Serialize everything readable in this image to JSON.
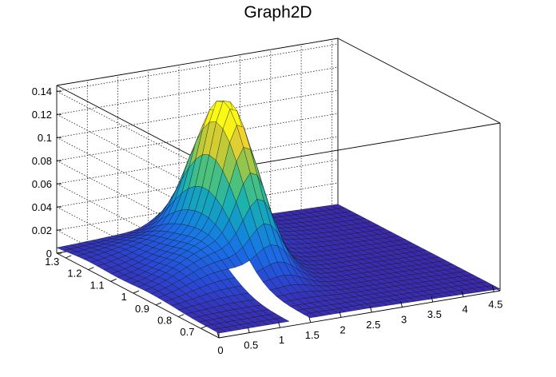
{
  "chart_data": {
    "type": "surface",
    "title": "Graph2D",
    "xlabel": "",
    "ylabel": "",
    "zlabel": "",
    "x_ticks": [
      "0",
      "0.5",
      "1",
      "1.5",
      "2",
      "2.5",
      "3",
      "3.5",
      "4",
      "4.5"
    ],
    "y_ticks": [
      "0.7",
      "0.8",
      "0.9",
      "1",
      "1.1",
      "1.2",
      "1.3"
    ],
    "z_ticks": [
      "0",
      "0.02",
      "0.04",
      "0.06",
      "0.08",
      "0.1",
      "0.12",
      "0.14"
    ],
    "xlim": [
      0,
      4.6
    ],
    "ylim": [
      0.62,
      1.34
    ],
    "zlim": [
      0,
      0.145
    ],
    "colormap": "viridis",
    "grid": true,
    "peak": {
      "x": 1.9,
      "y": 1.1,
      "z": 0.125
    },
    "ridge_points": [
      {
        "x": 0.5,
        "y": 0.85,
        "z": 0.025
      },
      {
        "x": 1.0,
        "y": 0.95,
        "z": 0.035
      },
      {
        "x": 1.5,
        "y": 1.02,
        "z": 0.06
      },
      {
        "x": 1.9,
        "y": 1.1,
        "z": 0.125
      },
      {
        "x": 2.3,
        "y": 1.15,
        "z": 0.05
      },
      {
        "x": 3.0,
        "y": 1.2,
        "z": 0.015
      }
    ]
  }
}
